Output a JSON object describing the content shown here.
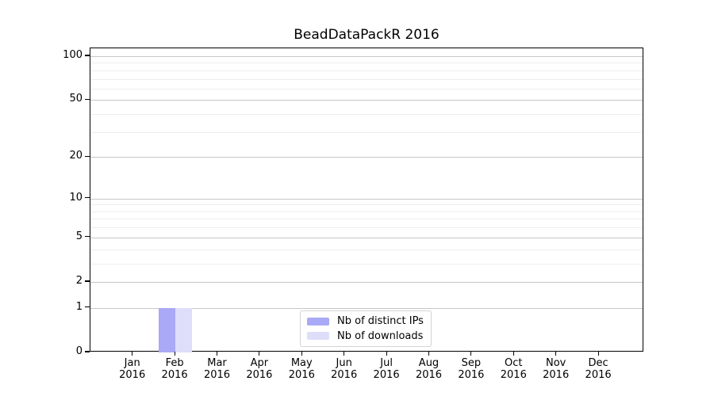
{
  "chart_data": {
    "type": "bar",
    "title": "BeadDataPackR 2016",
    "x_tick_year": "2016",
    "categories": [
      "Jan",
      "Feb",
      "Mar",
      "Apr",
      "May",
      "Jun",
      "Jul",
      "Aug",
      "Sep",
      "Oct",
      "Nov",
      "Dec"
    ],
    "series": [
      {
        "name": "Nb of distinct IPs",
        "color": "#a9a9f7",
        "values": [
          0,
          1,
          0,
          0,
          0,
          0,
          0,
          0,
          0,
          0,
          0,
          0
        ]
      },
      {
        "name": "Nb of downloads",
        "color": "#dedefa",
        "values": [
          0,
          1,
          0,
          0,
          0,
          0,
          0,
          0,
          0,
          0,
          0,
          0
        ]
      }
    ],
    "yaxis": {
      "scale": "log1p",
      "major_ticks": [
        0,
        1,
        2,
        5,
        10,
        20,
        50,
        100
      ],
      "minor_ticks": [
        3,
        4,
        6,
        7,
        8,
        9,
        30,
        40,
        60,
        70,
        80,
        90
      ]
    },
    "grid": "horizontal",
    "legend_position": "bottom-center",
    "colors": {
      "major_grid": "#c6c6c6",
      "minor_grid": "#ededed",
      "spine": "#000000",
      "legend_border": "#d4d4d4"
    }
  }
}
